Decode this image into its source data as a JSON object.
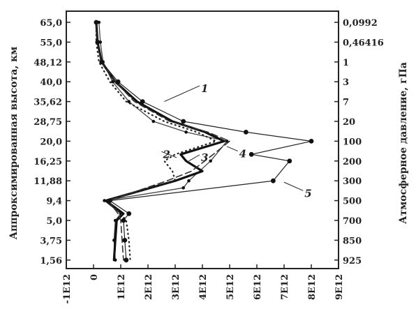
{
  "chart_data": {
    "type": "line",
    "ylabel_left": "Аппроксимированная высота, км",
    "ylabel_right": "Атмосферное давление, гПа",
    "xlabel": "",
    "xlim": [
      -1000000000000.0,
      9000000000000.0
    ],
    "x_ticks": [
      "-1E12",
      "0",
      "1E12",
      "2E12",
      "3E12",
      "4E12",
      "5E12",
      "6E12",
      "7E12",
      "8E12",
      "9E12"
    ],
    "y_levels": {
      "altitude_labels": [
        "65,0",
        "55,0",
        "48,12",
        "40,0",
        "35,62",
        "28,75",
        "20,0",
        "16,25",
        "11,88",
        "9,4",
        "5,0",
        "3,75",
        "1,56"
      ],
      "pressure_labels": [
        "0,0992",
        "0,46416",
        "1",
        "3",
        "7",
        "20",
        "100",
        "200",
        "300",
        "500",
        "700",
        "850",
        "925"
      ]
    },
    "series": [
      {
        "name": "1",
        "style": "thin-solid",
        "x": [
          200000000000.0,
          250000000000.0,
          350000000000.0,
          700000000000.0,
          1300000000000.0,
          2200000000000.0,
          3400000000000.0,
          4900000000000.0,
          4300000000000.0,
          3500000000000.0,
          3300000000000.0,
          400000000000.0,
          1000000000000.0,
          800000000000.0,
          750000000000.0,
          800000000000.0
        ],
        "y": [
          65.0,
          55.0,
          48.12,
          40.0,
          35.62,
          28.75,
          24.0,
          20.0,
          16.25,
          11.88,
          11.0,
          9.4,
          6.5,
          5.0,
          3.75,
          1.56
        ]
      },
      {
        "name": "2",
        "style": "bold-solid",
        "x": [
          100000000000.0,
          150000000000.0,
          300000000000.0,
          800000000000.0,
          1600000000000.0,
          2900000000000.0,
          4100000000000.0,
          4800000000000.0,
          3200000000000.0,
          3400000000000.0,
          4000000000000.0,
          3000000000000.0,
          450000000000.0,
          1100000000000.0,
          850000000000.0,
          800000000000.0,
          750000000000.0
        ],
        "y": [
          65.0,
          55.0,
          48.12,
          40.0,
          35.62,
          28.75,
          24.0,
          20.0,
          17.5,
          16.25,
          14.0,
          11.88,
          9.4,
          6.5,
          5.0,
          3.75,
          1.56
        ]
      },
      {
        "name": "3",
        "style": "dotted",
        "x": [
          100000000000.0,
          100000000000.0,
          200000000000.0,
          600000000000.0,
          1200000000000.0,
          2600000000000.0,
          3800000000000.0,
          4500000000000.0,
          3000000000000.0,
          2600000000000.0,
          2900000000000.0,
          3000000000000.0,
          500000000000.0,
          1000000000000.0,
          1200000000000.0,
          1300000000000.0,
          1350000000000.0
        ],
        "y": [
          65.0,
          55.0,
          48.12,
          40.0,
          35.62,
          28.75,
          24.0,
          20.0,
          17.5,
          16.25,
          14.0,
          11.88,
          9.4,
          6.5,
          5.0,
          3.75,
          1.56
        ]
      },
      {
        "name": "4",
        "style": "dashed",
        "x": [
          100000000000.0,
          150000000000.0,
          300000000000.0,
          800000000000.0,
          1500000000000.0,
          2800000000000.0,
          4200000000000.0,
          5000000000000.0,
          4400000000000.0,
          3600000000000.0,
          2700000000000.0,
          550000000000.0,
          900000000000.0,
          1000000000000.0,
          1050000000000.0,
          1100000000000.0
        ],
        "y": [
          65.0,
          55.0,
          48.12,
          40.0,
          35.62,
          28.75,
          24.0,
          20.0,
          17.5,
          14.0,
          11.88,
          9.4,
          6.5,
          5.0,
          3.75,
          1.56
        ]
      },
      {
        "name": "5",
        "style": "thin-solid-markers",
        "x": [
          100000000000.0,
          150000000000.0,
          300000000000.0,
          900000000000.0,
          1800000000000.0,
          3300000000000.0,
          5600000000000.0,
          8000000000000.0,
          5800000000000.0,
          7200000000000.0,
          6600000000000.0,
          600000000000.0,
          1300000000000.0,
          1100000000000.0,
          1150000000000.0,
          1200000000000.0
        ],
        "y": [
          65.0,
          55.0,
          48.12,
          40.0,
          35.62,
          28.75,
          24.0,
          20.0,
          17.5,
          16.25,
          11.88,
          9.4,
          6.5,
          5.0,
          3.75,
          1.56
        ]
      }
    ],
    "legend": "curve numbers annotated on plot",
    "grid": false
  }
}
